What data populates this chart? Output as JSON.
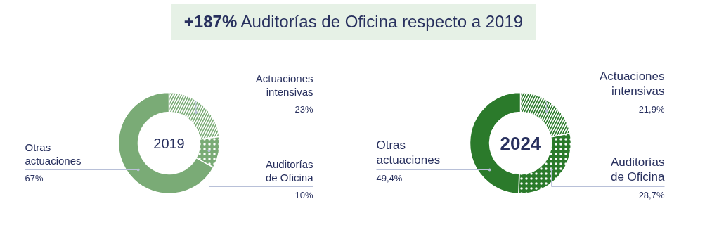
{
  "chart_data": [
    {
      "type": "donut",
      "title": "+187% Auditorías de Oficina respecto a 2019",
      "annotations": [
        "2019"
      ],
      "categories": [
        "Actuaciones intensivas",
        "Auditorías de Oficina",
        "Otras actuaciones"
      ],
      "values": [
        23,
        10,
        67
      ],
      "value_labels": [
        "23%",
        "10%",
        "67%"
      ],
      "colors": [
        "#7aab76",
        "#7aab76",
        "#7aab76"
      ]
    },
    {
      "type": "donut",
      "annotations": [
        "2024"
      ],
      "categories": [
        "Actuaciones intensivas",
        "Auditorías de Oficina",
        "Otras actuaciones"
      ],
      "values": [
        21.9,
        28.7,
        49.4
      ],
      "value_labels": [
        "21,9%",
        "28,7%",
        "49,4%"
      ],
      "colors": [
        "#2b7a2b",
        "#2b7a2b",
        "#2b7a2b"
      ]
    }
  ]
}
